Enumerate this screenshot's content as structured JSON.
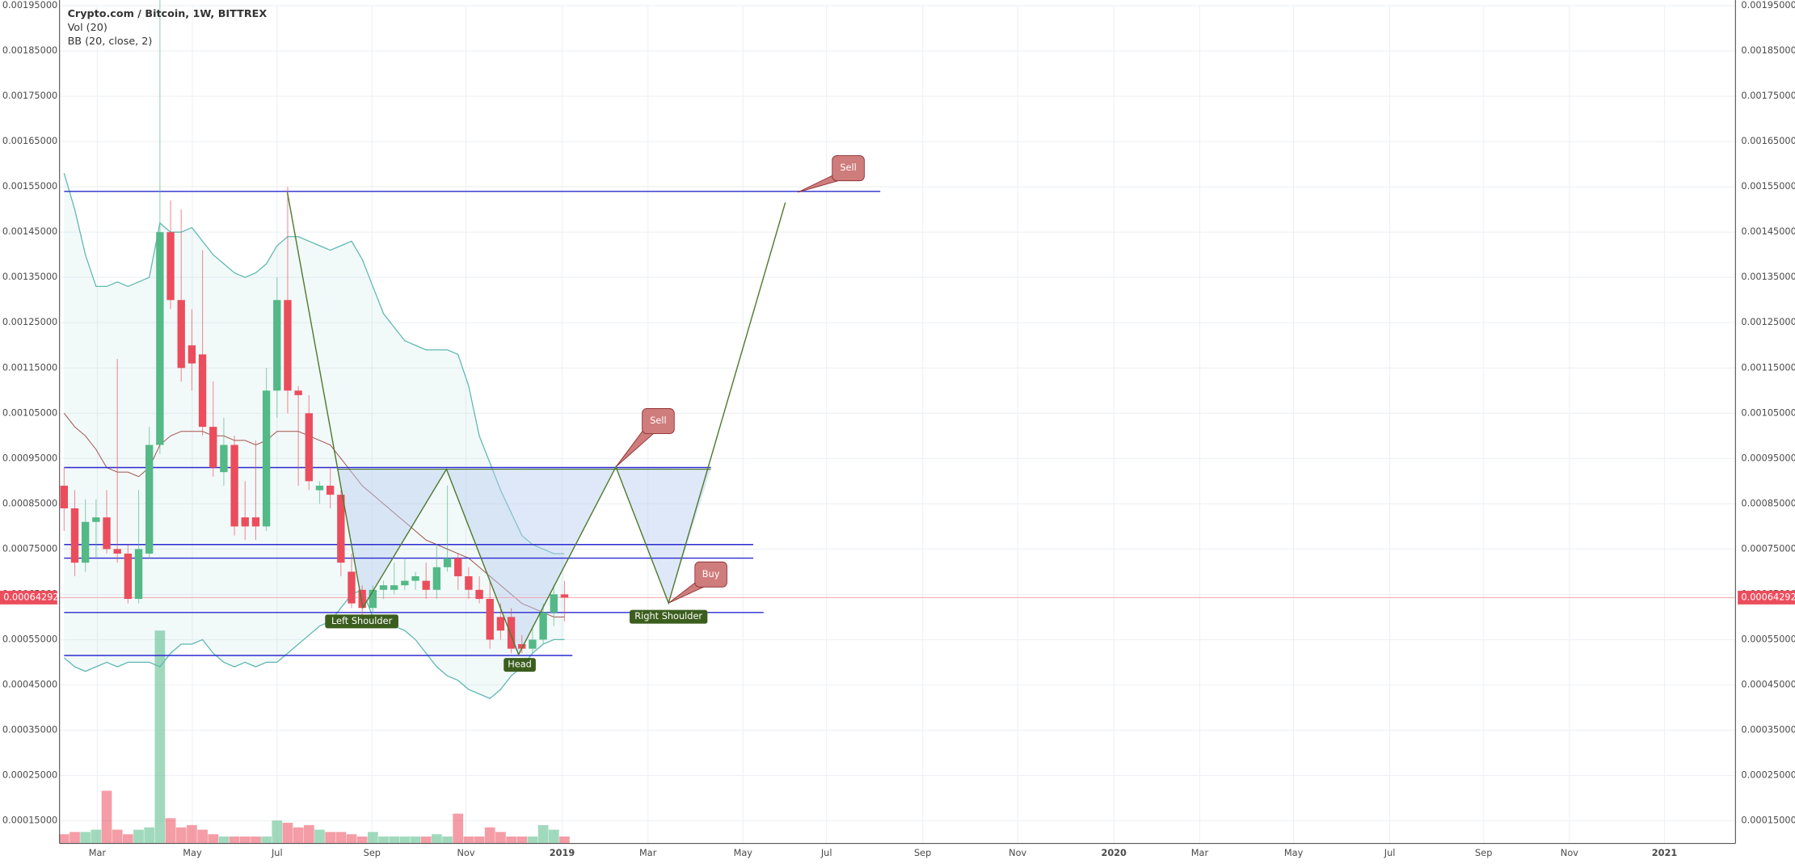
{
  "chart_data": {
    "type": "candlestick",
    "title": "Crypto.com / Bitcoin, 1W, BITTREX",
    "indicators": [
      "Vol (20)",
      "BB (20, close, 2)"
    ],
    "ylim": [
      0.0001,
      0.00195
    ],
    "yticks": [
      {
        "value": 0.00015,
        "label": "0.00015000"
      },
      {
        "value": 0.00025,
        "label": "0.00025000"
      },
      {
        "value": 0.00035,
        "label": "0.00035000"
      },
      {
        "value": 0.00045,
        "label": "0.00045000"
      },
      {
        "value": 0.00055,
        "label": "0.00055000"
      },
      {
        "value": 0.00065,
        "label": "0.00065000"
      },
      {
        "value": 0.00075,
        "label": "0.00075000"
      },
      {
        "value": 0.00085,
        "label": "0.00085000"
      },
      {
        "value": 0.00095,
        "label": "0.00095000"
      },
      {
        "value": 0.00105,
        "label": "0.00105000"
      },
      {
        "value": 0.00115,
        "label": "0.00115000"
      },
      {
        "value": 0.00125,
        "label": "0.00125000"
      },
      {
        "value": 0.00135,
        "label": "0.00135000"
      },
      {
        "value": 0.00145,
        "label": "0.00145000"
      },
      {
        "value": 0.00155,
        "label": "0.00155000"
      },
      {
        "value": 0.00165,
        "label": "0.00165000"
      },
      {
        "value": 0.00175,
        "label": "0.00175000"
      },
      {
        "value": 0.00185,
        "label": "0.00185000"
      },
      {
        "value": 0.00195,
        "label": "0.00195000"
      }
    ],
    "xtick_labels": [
      "Mar",
      "May",
      "Jul",
      "Sep",
      "Nov",
      "2019",
      "Mar",
      "May",
      "Jul",
      "Sep",
      "Nov",
      "2020",
      "Mar",
      "May",
      "Jul",
      "Sep",
      "Nov",
      "2021"
    ],
    "grid": true,
    "up_color": "#53b987",
    "down_color": "#eb4d5c",
    "ohlc": [
      [
        0.00089,
        0.00093,
        0.00079,
        0.00084
      ],
      [
        0.00084,
        0.00088,
        0.00069,
        0.00072
      ],
      [
        0.00072,
        0.00086,
        0.0007,
        0.00081
      ],
      [
        0.00081,
        0.00086,
        0.00073,
        0.00082
      ],
      [
        0.00082,
        0.00088,
        0.00074,
        0.00075
      ],
      [
        0.00075,
        0.00117,
        0.00072,
        0.00074
      ],
      [
        0.00074,
        0.00076,
        0.00063,
        0.00064
      ],
      [
        0.00064,
        0.00088,
        0.00063,
        0.00075
      ],
      [
        0.00074,
        0.00102,
        0.00073,
        0.00098
      ],
      [
        0.00098,
        0.00198,
        0.00096,
        0.00145
      ],
      [
        0.00145,
        0.00152,
        0.00128,
        0.0013
      ],
      [
        0.0013,
        0.0015,
        0.00112,
        0.00115
      ],
      [
        0.0012,
        0.00128,
        0.0011,
        0.00116
      ],
      [
        0.00118,
        0.00141,
        0.001,
        0.00102
      ],
      [
        0.00102,
        0.00112,
        0.00091,
        0.00093
      ],
      [
        0.00092,
        0.00104,
        0.00089,
        0.00098
      ],
      [
        0.00098,
        0.001,
        0.00078,
        0.0008
      ],
      [
        0.00082,
        0.0009,
        0.00077,
        0.0008
      ],
      [
        0.00082,
        0.00099,
        0.00077,
        0.0008
      ],
      [
        0.0008,
        0.00115,
        0.00079,
        0.0011
      ],
      [
        0.0011,
        0.00135,
        0.00104,
        0.0013
      ],
      [
        0.0013,
        0.00155,
        0.00105,
        0.0011
      ],
      [
        0.0011,
        0.00111,
        0.00089,
        0.00109
      ],
      [
        0.00105,
        0.00109,
        0.00088,
        0.0009
      ],
      [
        0.00088,
        0.0009,
        0.00085,
        0.00089
      ],
      [
        0.00089,
        0.00093,
        0.00084,
        0.00087
      ],
      [
        0.00087,
        0.00088,
        0.00069,
        0.00072
      ],
      [
        0.0007,
        0.00074,
        0.00062,
        0.00063
      ],
      [
        0.00066,
        0.00067,
        0.0006,
        0.00062
      ],
      [
        0.00062,
        0.00067,
        0.00061,
        0.00066
      ],
      [
        0.00066,
        0.00068,
        0.00064,
        0.00067
      ],
      [
        0.00066,
        0.00072,
        0.00065,
        0.00067
      ],
      [
        0.00067,
        0.00073,
        0.00066,
        0.00068
      ],
      [
        0.00068,
        0.0007,
        0.00066,
        0.00069
      ],
      [
        0.00068,
        0.00072,
        0.00064,
        0.00066
      ],
      [
        0.00066,
        0.00076,
        0.00064,
        0.00071
      ],
      [
        0.00071,
        0.00089,
        0.0007,
        0.00073
      ],
      [
        0.00073,
        0.00074,
        0.00066,
        0.00069
      ],
      [
        0.00069,
        0.00071,
        0.00064,
        0.00066
      ],
      [
        0.00066,
        0.00069,
        0.00063,
        0.00064
      ],
      [
        0.00064,
        0.00068,
        0.00053,
        0.00055
      ],
      [
        0.0006,
        0.00063,
        0.00055,
        0.00057
      ],
      [
        0.0006,
        0.00062,
        0.00052,
        0.00053
      ],
      [
        0.00054,
        0.00056,
        0.00052,
        0.00053
      ],
      [
        0.00053,
        0.00058,
        0.00052,
        0.00055
      ],
      [
        0.00055,
        0.00063,
        0.00054,
        0.00061
      ],
      [
        0.00061,
        0.00067,
        0.00058,
        0.00065
      ],
      [
        0.00065,
        0.00068,
        0.00059,
        0.00064292
      ]
    ],
    "last_price_label": "0.00064292",
    "volume": [
      4,
      5,
      5,
      6,
      23,
      6,
      4,
      6,
      7,
      93,
      11,
      7,
      8,
      6,
      4,
      3,
      3,
      3,
      3,
      3,
      10,
      9,
      7,
      8,
      6,
      5,
      5,
      4,
      3,
      5,
      3,
      3,
      3,
      3,
      3,
      4,
      3,
      13,
      3,
      3,
      7,
      5,
      3,
      3,
      3,
      8,
      6,
      3
    ],
    "vlim": [
      0,
      100
    ],
    "bb": {
      "color": "#5fb8b0",
      "basis_color": "#a0524f",
      "upper": [
        0.00158,
        0.0015,
        0.0014,
        0.00133,
        0.00133,
        0.00134,
        0.00133,
        0.00134,
        0.00135,
        0.00147,
        0.00145,
        0.00145,
        0.00146,
        0.00143,
        0.0014,
        0.00138,
        0.00136,
        0.00135,
        0.00136,
        0.00138,
        0.00142,
        0.00144,
        0.00144,
        0.00143,
        0.00142,
        0.00141,
        0.00142,
        0.00143,
        0.00139,
        0.00133,
        0.00127,
        0.00124,
        0.00121,
        0.0012,
        0.00119,
        0.00119,
        0.00119,
        0.00118,
        0.00111,
        0.001,
        0.00094,
        0.00088,
        0.00083,
        0.00078,
        0.00076,
        0.00075,
        0.00074,
        0.00074
      ],
      "basis": [
        0.00105,
        0.00102,
        0.001,
        0.00097,
        0.00093,
        0.00092,
        0.00092,
        0.00091,
        0.00093,
        0.00098,
        0.001,
        0.00101,
        0.00101,
        0.00101,
        0.001,
        0.001,
        0.00099,
        0.00099,
        0.00098,
        0.00099,
        0.00101,
        0.00101,
        0.00101,
        0.001,
        0.00099,
        0.00098,
        0.00095,
        0.00092,
        0.00089,
        0.00087,
        0.00085,
        0.00083,
        0.00081,
        0.00079,
        0.00077,
        0.00076,
        0.00075,
        0.00074,
        0.00073,
        0.00071,
        0.00069,
        0.00067,
        0.00065,
        0.00063,
        0.00062,
        0.00061,
        0.0006,
        0.0006
      ],
      "lower": [
        0.00051,
        0.00049,
        0.00048,
        0.00049,
        0.0005,
        0.00049,
        0.0005,
        0.0005,
        0.0005,
        0.00049,
        0.00052,
        0.00054,
        0.00054,
        0.00055,
        0.00052,
        0.0005,
        0.00049,
        0.0005,
        0.00049,
        0.0005,
        0.0005,
        0.00052,
        0.00054,
        0.00056,
        0.00058,
        0.00059,
        0.00062,
        0.00065,
        0.00066,
        0.0006,
        0.00059,
        0.00058,
        0.00057,
        0.00055,
        0.00052,
        0.00049,
        0.00047,
        0.00046,
        0.00044,
        0.00043,
        0.00042,
        0.00044,
        0.00047,
        0.00049,
        0.00052,
        0.00054,
        0.00055,
        0.00055
      ]
    },
    "levels": [
      0.00154,
      0.00093,
      0.00076,
      0.00073,
      0.00061,
      0.000515
    ],
    "level_color": "#2a2ad0",
    "callouts": [
      "Sell",
      "Sell",
      "Buy"
    ],
    "pattern_labels": [
      "Left Shoulder",
      "Head",
      "Right Shoulder"
    ]
  }
}
